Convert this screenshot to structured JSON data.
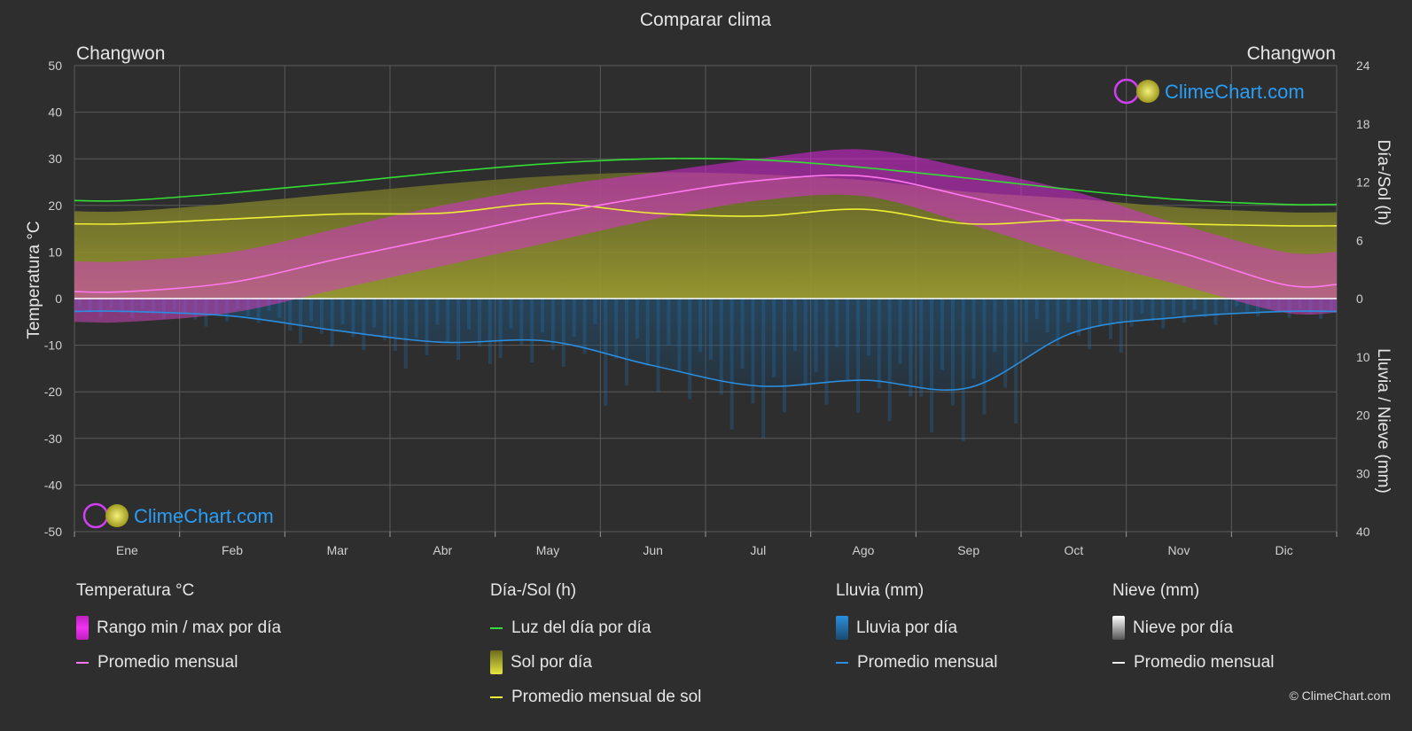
{
  "title": "Comparar clima",
  "location_left": "Changwon",
  "location_right": "Changwon",
  "axis_left_label": "Temperatura °C",
  "axis_right_top_label": "Día-/Sol (h)",
  "axis_right_bottom_label": "Lluvia / Nieve (mm)",
  "logo_text": "ClimeChart.com",
  "copyright": "© ClimeChart.com",
  "legend": {
    "temperature": {
      "title": "Temperatura °C",
      "range_label": "Rango min / max por día",
      "avg_label": "Promedio mensual"
    },
    "sun": {
      "title": "Día-/Sol (h)",
      "daylight_label": "Luz del día por día",
      "sun_label": "Sol por día",
      "sun_avg_label": "Promedio mensual de sol"
    },
    "rain": {
      "title": "Lluvia (mm)",
      "rain_label": "Lluvia por día",
      "avg_label": "Promedio mensual"
    },
    "snow": {
      "title": "Nieve (mm)",
      "snow_label": "Nieve por día",
      "avg_label": "Promedio mensual"
    }
  },
  "colors": {
    "background": "#2e2e2e",
    "grid": "#5a5a5a",
    "temp_avg": "#ff77ee",
    "temp_range": "#dd22dd",
    "daylight": "#33dd33",
    "sun_fill": "#8c8c2a",
    "sun_avg": "#eeee33",
    "rain": "#2277bb",
    "rain_avg": "#2a8ee0",
    "snow": "#dddddd",
    "logo_text": "#2a9df4"
  },
  "chart_data": {
    "type": "area",
    "categories": [
      "Ene",
      "Feb",
      "Mar",
      "Abr",
      "May",
      "Jun",
      "Jul",
      "Ago",
      "Sep",
      "Oct",
      "Nov",
      "Dic"
    ],
    "axes": {
      "temperature_ylim": [
        -50,
        50
      ],
      "temperature_ticks": [
        50,
        40,
        30,
        20,
        10,
        0,
        -10,
        -20,
        -30,
        -40,
        -50
      ],
      "sun_hours_ylim": [
        0,
        24
      ],
      "sun_hours_ticks": [
        24,
        18,
        12,
        6,
        0
      ],
      "precip_mm_ylim": [
        0,
        40
      ],
      "precip_mm_ticks": [
        0,
        10,
        20,
        30,
        40
      ]
    },
    "series": [
      {
        "name": "Luz del día por día",
        "unit": "h",
        "values": [
          10.1,
          10.9,
          11.9,
          13.0,
          13.9,
          14.4,
          14.3,
          13.5,
          12.4,
          11.2,
          10.2,
          9.7
        ]
      },
      {
        "name": "Promedio mensual de sol",
        "unit": "h",
        "values": [
          7.7,
          8.2,
          8.7,
          8.8,
          9.8,
          8.8,
          8.5,
          9.2,
          7.7,
          8.1,
          7.7,
          7.5
        ]
      },
      {
        "name": "Sol por día",
        "unit": "h",
        "values": [
          9.0,
          9.8,
          10.8,
          11.8,
          12.6,
          13.0,
          12.8,
          12.2,
          11.0,
          10.3,
          9.4,
          8.9
        ]
      },
      {
        "name": "Promedio mensual",
        "unit": "°C",
        "values": [
          1.5,
          3.5,
          8.5,
          13.2,
          18.0,
          22.0,
          25.3,
          26.3,
          21.8,
          16.2,
          10.0,
          3.0
        ]
      },
      {
        "name": "Rango max",
        "unit": "°C",
        "values": [
          8,
          10,
          15,
          20,
          24,
          27,
          30,
          32,
          28,
          23,
          16,
          10
        ]
      },
      {
        "name": "Rango min",
        "unit": "°C",
        "values": [
          -5,
          -3,
          2,
          7,
          12,
          17,
          21,
          22,
          16,
          9,
          3,
          -3
        ]
      },
      {
        "name": "Promedio mensual lluvia",
        "unit": "mm",
        "values": [
          2.2,
          3.0,
          5.5,
          7.5,
          7.3,
          11.5,
          15.0,
          14.0,
          15.3,
          5.8,
          3.2,
          2.2
        ]
      },
      {
        "name": "Promedio mensual nieve",
        "unit": "mm",
        "values": [
          0.1,
          0.1,
          0,
          0,
          0,
          0,
          0,
          0,
          0,
          0,
          0,
          0.1
        ]
      }
    ]
  }
}
